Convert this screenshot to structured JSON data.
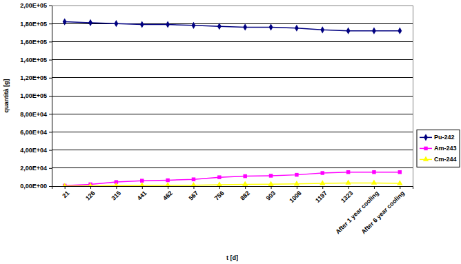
{
  "chart_data": {
    "type": "line",
    "x_label": "t [d]",
    "y_label": "quantità [g]",
    "categories": [
      "21",
      "126",
      "315",
      "441",
      "462",
      "567",
      "756",
      "882",
      "903",
      "1008",
      "1197",
      "1323",
      "After 1 year cooling",
      "After 6 year cooling"
    ],
    "series": [
      {
        "name": "Pu-242",
        "color": "#000080",
        "marker": "diamond",
        "values": [
          182000,
          181000,
          180000,
          179000,
          179000,
          178000,
          177000,
          176000,
          176000,
          175000,
          173000,
          172000,
          172000,
          172000
        ]
      },
      {
        "name": "Am-243",
        "color": "#ff00ff",
        "marker": "square",
        "values": [
          500,
          2000,
          4500,
          6000,
          6500,
          7500,
          9800,
          11000,
          11500,
          12500,
          14500,
          15500,
          15500,
          15500
        ]
      },
      {
        "name": "Cm-244",
        "color": "#ffff00",
        "marker": "triangle",
        "values": [
          0,
          200,
          500,
          800,
          900,
          1000,
          1500,
          2000,
          2100,
          2500,
          3000,
          3500,
          3500,
          3000
        ]
      }
    ],
    "ylim": [
      0,
      200000
    ],
    "yticks": [
      {
        "value": 0,
        "label": "0,00E+00"
      },
      {
        "value": 20000,
        "label": "2,00E+04"
      },
      {
        "value": 40000,
        "label": "4,00E+04"
      },
      {
        "value": 60000,
        "label": "6,00E+04"
      },
      {
        "value": 80000,
        "label": "8,00E+04"
      },
      {
        "value": 100000,
        "label": "1,00E+05"
      },
      {
        "value": 120000,
        "label": "1,20E+05"
      },
      {
        "value": 140000,
        "label": "1,40E+05"
      },
      {
        "value": 160000,
        "label": "1,60E+05"
      },
      {
        "value": 180000,
        "label": "1,80E+05"
      },
      {
        "value": 200000,
        "label": "2,00E+05"
      }
    ],
    "grid": true,
    "legend": "right"
  }
}
